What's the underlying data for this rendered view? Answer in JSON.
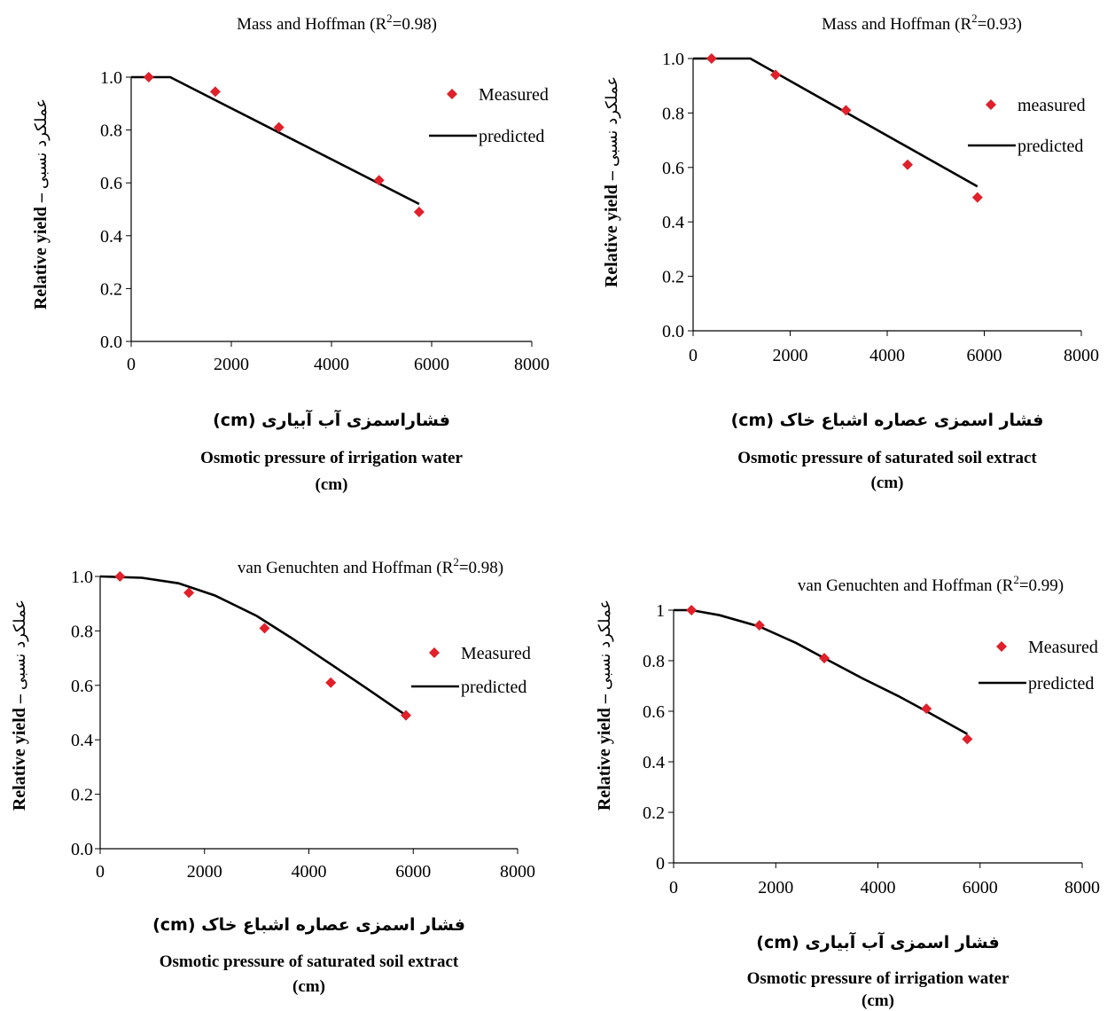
{
  "charts": [
    {
      "title": "Mass and Hoffman (R",
      "title_sup": "2",
      "title_tail": "=0.98)",
      "ylabel_en": "Relative yield",
      "ylabel_sep": " – ",
      "ylabel_fa": "عملکرد نسبی",
      "xtitle_fa": "فشاراسمزی آب آبیاری (cm)",
      "xtitle_en": "Osmotic pressure of irrigation water",
      "xtitle_unit": "(cm)",
      "legend_measured": "Measured",
      "legend_predicted": "predicted"
    },
    {
      "title": "Mass and Hoffman (R",
      "title_sup": "2",
      "title_tail": "=0.93)",
      "ylabel_en": "Relative yield",
      "ylabel_sep": " – ",
      "ylabel_fa": "عملکرد نسبی",
      "xtitle_fa": "فشار اسمزی عصاره اشباع خاک (cm)",
      "xtitle_en": "Osmotic pressure of saturated soil extract",
      "xtitle_unit": "(cm)",
      "legend_measured": "measured",
      "legend_predicted": "predicted"
    },
    {
      "title": "van Genuchten and Hoffman (R",
      "title_sup": "2",
      "title_tail": "=0.98)",
      "ylabel_en": "Relative yield",
      "ylabel_sep": " – ",
      "ylabel_fa": "عملکرد نسبی",
      "xtitle_fa": "فشار اسمزی عصاره اشباع خاک (cm)",
      "xtitle_en": "Osmotic pressure of saturated soil extract",
      "xtitle_unit": "(cm)",
      "legend_measured": "Measured",
      "legend_predicted": "predicted"
    },
    {
      "title": "van Genuchten and Hoffman (R",
      "title_sup": "2",
      "title_tail": "=0.99)",
      "ylabel_en": "Relative yield",
      "ylabel_sep": " – ",
      "ylabel_fa": "عملکرد نسبی",
      "xtitle_fa": "فشار اسمزی آب آبیاری (cm)",
      "xtitle_en": "Osmotic pressure of irrigation water",
      "xtitle_unit": "(cm)",
      "legend_measured": "Measured",
      "legend_predicted": "predicted"
    }
  ],
  "chart_data": [
    {
      "type": "scatter",
      "xlim": [
        0,
        8000
      ],
      "ylim": [
        0,
        1.0
      ],
      "xticks": [
        "0",
        "2000",
        "4000",
        "6000",
        "8000"
      ],
      "yticks": [
        "0.0",
        "0.2",
        "0.4",
        "0.6",
        "0.8",
        "1.0"
      ],
      "measured": {
        "x": [
          350,
          1680,
          2950,
          4950,
          5750
        ],
        "y": [
          1.0,
          0.945,
          0.81,
          0.61,
          0.49
        ]
      },
      "predicted": {
        "x": [
          0,
          780,
          5750
        ],
        "y": [
          1.0,
          1.0,
          0.52
        ]
      },
      "grid": false,
      "legend_position": "right",
      "marker_color": "#e0202a",
      "line_color": "#000000"
    },
    {
      "type": "scatter",
      "xlim": [
        0,
        8000
      ],
      "ylim": [
        0,
        1.0
      ],
      "xticks": [
        "0",
        "2000",
        "4000",
        "6000",
        "8000"
      ],
      "yticks": [
        "0.0",
        "0.2",
        "0.4",
        "0.6",
        "0.8",
        "1.0"
      ],
      "measured": {
        "x": [
          380,
          1700,
          3150,
          4420,
          5860
        ],
        "y": [
          1.0,
          0.94,
          0.81,
          0.61,
          0.49
        ]
      },
      "predicted": {
        "x": [
          0,
          1180,
          5860
        ],
        "y": [
          1.0,
          1.0,
          0.53
        ]
      },
      "grid": false,
      "legend_position": "right",
      "marker_color": "#e0202a",
      "line_color": "#000000"
    },
    {
      "type": "scatter",
      "xlim": [
        0,
        8000
      ],
      "ylim": [
        0,
        1.0
      ],
      "xticks": [
        "0",
        "2000",
        "4000",
        "6000",
        "8000"
      ],
      "yticks": [
        "0.0",
        "0.2",
        "0.4",
        "0.6",
        "0.8",
        "1.0"
      ],
      "measured": {
        "x": [
          380,
          1700,
          3150,
          4420,
          5860
        ],
        "y": [
          1.0,
          0.94,
          0.81,
          0.61,
          0.49
        ]
      },
      "predicted": {
        "x": [
          0,
          800,
          1500,
          2200,
          3000,
          3700,
          4400,
          5100,
          5860
        ],
        "y": [
          1.0,
          0.995,
          0.975,
          0.93,
          0.855,
          0.77,
          0.68,
          0.59,
          0.49
        ]
      },
      "grid": false,
      "legend_position": "right",
      "marker_color": "#e0202a",
      "line_color": "#000000"
    },
    {
      "type": "scatter",
      "xlim": [
        0,
        8000
      ],
      "ylim": [
        0,
        1
      ],
      "xticks": [
        "0",
        "2000",
        "4000",
        "6000",
        "8000"
      ],
      "yticks": [
        "0",
        "0.2",
        "0.4",
        "0.6",
        "0.8",
        "1"
      ],
      "measured": {
        "x": [
          350,
          1680,
          2950,
          4950,
          5750
        ],
        "y": [
          1.0,
          0.94,
          0.81,
          0.61,
          0.49
        ]
      },
      "predicted": {
        "x": [
          0,
          350,
          900,
          1680,
          2400,
          2950,
          3700,
          4400,
          4950,
          5750
        ],
        "y": [
          1.0,
          1.0,
          0.98,
          0.935,
          0.87,
          0.81,
          0.73,
          0.66,
          0.6,
          0.51
        ]
      },
      "grid": false,
      "legend_position": "right",
      "marker_color": "#e0202a",
      "line_color": "#000000"
    }
  ]
}
